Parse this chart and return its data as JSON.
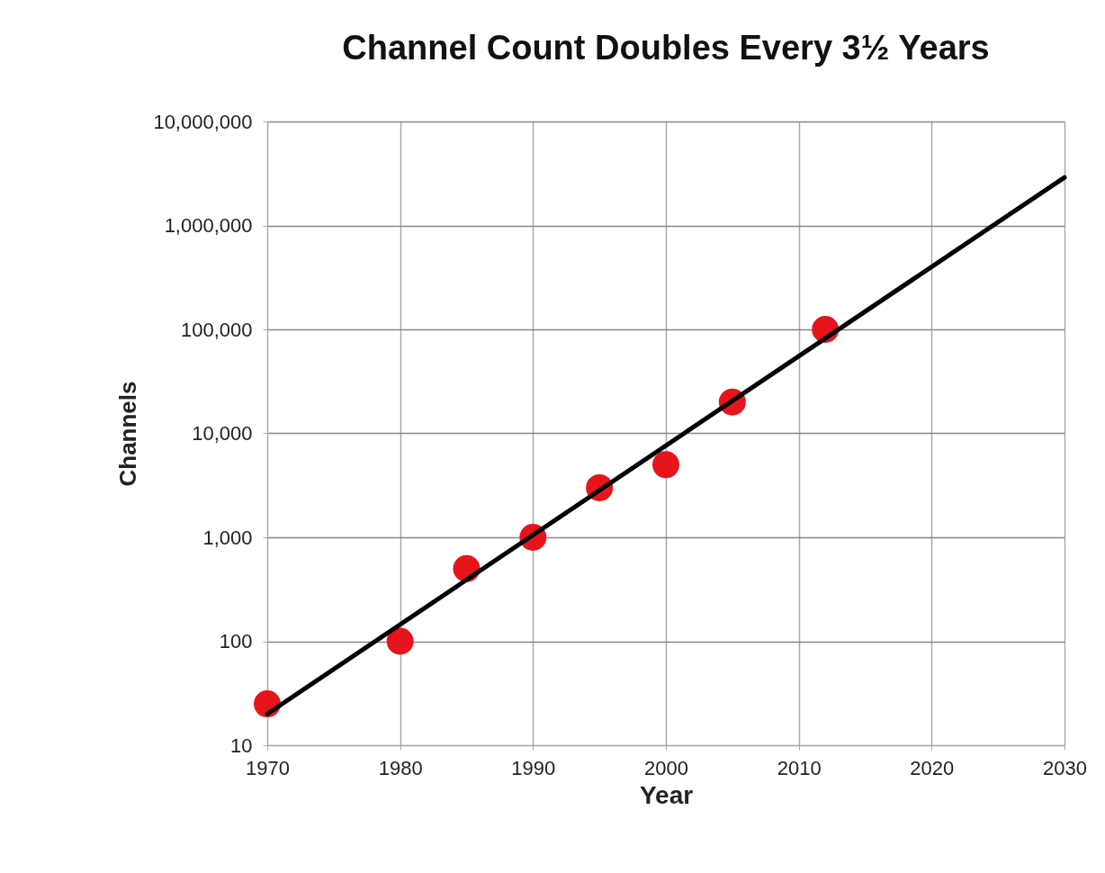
{
  "chart_data": {
    "type": "scatter",
    "title": "Channel Count Doubles Every 3½ Years",
    "xlabel": "Year",
    "ylabel": "Channels",
    "log": "y",
    "grid": true,
    "xlim": [
      1970,
      2030
    ],
    "xticks": [
      1970,
      1980,
      1990,
      2000,
      2010,
      2020,
      2030
    ],
    "ylim": [
      10,
      10000000
    ],
    "yticks": [
      10,
      100,
      {
        "value": 1000,
        "label": "1,000"
      },
      {
        "value": 10000,
        "label": "10,000"
      },
      {
        "value": 100000,
        "label": "100,000"
      },
      {
        "value": 1000000,
        "label": "1,000,000"
      },
      {
        "value": 10000000,
        "label": "10,000,000"
      }
    ],
    "series": [
      {
        "marker": "circle",
        "color": "#e8141c",
        "x": [
          1970,
          1980,
          1985,
          1990,
          1995,
          2000,
          2005,
          2012
        ],
        "values": [
          25,
          100,
          500,
          1000,
          3000,
          5000,
          20000,
          100000
        ]
      },
      {
        "type": "line",
        "color": "#000000",
        "x": [
          1970,
          2030
        ],
        "values": [
          20,
          2900000
        ]
      }
    ]
  }
}
